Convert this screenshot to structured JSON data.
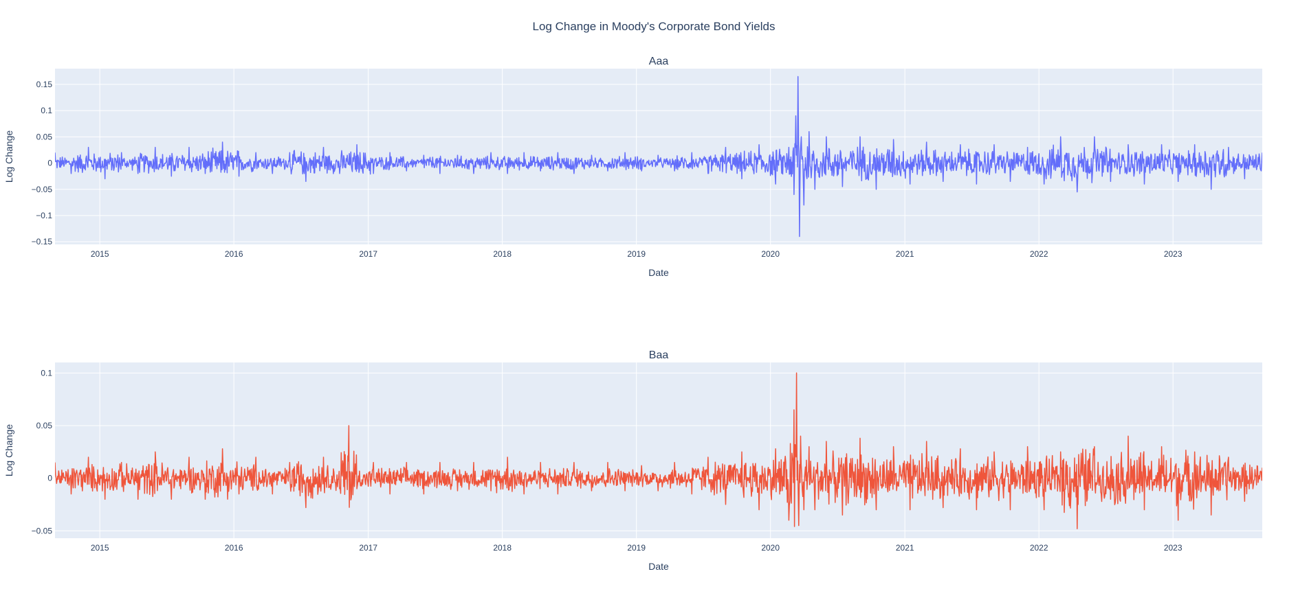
{
  "figure": {
    "title": "Log Change in Moody's Corporate Bond Yields"
  },
  "chart_data": [
    {
      "type": "line",
      "title": "Aaa",
      "xlabel": "Date",
      "ylabel": "Log Change",
      "x_range": [
        "2014-09-01",
        "2023-09-01"
      ],
      "ylim": [
        -0.155,
        0.18
      ],
      "x_ticks": [
        "2015",
        "2016",
        "2017",
        "2018",
        "2019",
        "2020",
        "2021",
        "2022",
        "2023"
      ],
      "y_ticks": [
        -0.15,
        -0.1,
        -0.05,
        0,
        0.05,
        0.1,
        0.15
      ],
      "y_tick_labels": [
        "−0.15",
        "−0.1",
        "−0.05",
        "0",
        "0.05",
        "0.1",
        "0.15"
      ],
      "grid": true,
      "series": [
        {
          "color": "#636efa",
          "x": [
            "2014-09-01",
            "2014-10-15",
            "2014-12-01",
            "2015-01-15",
            "2015-03-01",
            "2015-04-15",
            "2015-06-01",
            "2015-07-15",
            "2015-09-01",
            "2015-10-15",
            "2015-12-01",
            "2016-01-15",
            "2016-03-01",
            "2016-04-15",
            "2016-06-01",
            "2016-07-15",
            "2016-09-01",
            "2016-10-15",
            "2016-12-01",
            "2017-01-15",
            "2017-03-01",
            "2017-04-15",
            "2017-06-01",
            "2017-07-15",
            "2017-09-01",
            "2017-10-15",
            "2017-12-01",
            "2018-01-15",
            "2018-03-01",
            "2018-04-15",
            "2018-06-01",
            "2018-07-15",
            "2018-09-01",
            "2018-10-15",
            "2018-12-01",
            "2019-01-15",
            "2019-03-01",
            "2019-04-15",
            "2019-06-01",
            "2019-07-15",
            "2019-09-01",
            "2019-10-15",
            "2019-12-01",
            "2020-01-15",
            "2020-02-20",
            "2020-03-05",
            "2020-03-10",
            "2020-03-16",
            "2020-03-20",
            "2020-03-25",
            "2020-04-01",
            "2020-04-15",
            "2020-05-01",
            "2020-06-01",
            "2020-07-15",
            "2020-09-01",
            "2020-10-15",
            "2020-12-01",
            "2021-01-15",
            "2021-03-01",
            "2021-04-15",
            "2021-06-01",
            "2021-07-15",
            "2021-09-01",
            "2021-10-15",
            "2021-12-01",
            "2022-01-15",
            "2022-03-01",
            "2022-04-15",
            "2022-06-01",
            "2022-07-15",
            "2022-09-01",
            "2022-10-15",
            "2022-12-01",
            "2023-01-15",
            "2023-03-01",
            "2023-04-15",
            "2023-06-01",
            "2023-07-15",
            "2023-09-01"
          ],
          "y": [
            0.02,
            -0.02,
            0.03,
            -0.03,
            0.02,
            -0.02,
            0.03,
            -0.025,
            0.03,
            -0.02,
            0.04,
            -0.025,
            0.02,
            -0.02,
            0.02,
            -0.035,
            0.03,
            -0.02,
            0.035,
            -0.02,
            0.02,
            -0.015,
            0.015,
            -0.02,
            0.015,
            -0.02,
            0.02,
            -0.02,
            0.02,
            -0.015,
            0.02,
            -0.02,
            0.015,
            -0.015,
            0.02,
            -0.015,
            0.015,
            -0.015,
            0.02,
            -0.02,
            0.03,
            -0.03,
            0.035,
            -0.04,
            0.03,
            -0.06,
            0.09,
            0.165,
            -0.14,
            0.05,
            -0.08,
            0.06,
            -0.05,
            0.05,
            -0.045,
            0.05,
            -0.05,
            0.045,
            -0.04,
            0.04,
            -0.035,
            0.035,
            -0.04,
            0.035,
            -0.035,
            0.03,
            -0.04,
            0.05,
            -0.055,
            0.05,
            -0.035,
            0.035,
            -0.04,
            0.035,
            -0.035,
            0.035,
            -0.05,
            0.03,
            -0.03,
            0.02
          ]
        }
      ]
    },
    {
      "type": "line",
      "title": "Baa",
      "xlabel": "Date",
      "ylabel": "Log Change",
      "x_range": [
        "2014-09-01",
        "2023-09-01"
      ],
      "ylim": [
        -0.057,
        0.11
      ],
      "x_ticks": [
        "2015",
        "2016",
        "2017",
        "2018",
        "2019",
        "2020",
        "2021",
        "2022",
        "2023"
      ],
      "y_ticks": [
        -0.05,
        0,
        0.05,
        0.1
      ],
      "y_tick_labels": [
        "−0.05",
        "0",
        "0.05",
        "0.1"
      ],
      "grid": true,
      "series": [
        {
          "color": "#ef553b",
          "x": [
            "2014-09-01",
            "2014-10-15",
            "2014-12-01",
            "2015-01-15",
            "2015-03-01",
            "2015-04-15",
            "2015-06-01",
            "2015-07-15",
            "2015-09-01",
            "2015-10-15",
            "2015-12-01",
            "2016-01-15",
            "2016-03-01",
            "2016-04-15",
            "2016-06-01",
            "2016-07-15",
            "2016-09-01",
            "2016-10-15",
            "2016-11-09",
            "2016-12-01",
            "2017-01-15",
            "2017-03-01",
            "2017-04-15",
            "2017-06-01",
            "2017-07-15",
            "2017-09-01",
            "2017-10-15",
            "2017-12-01",
            "2018-01-15",
            "2018-03-01",
            "2018-04-15",
            "2018-06-01",
            "2018-07-15",
            "2018-09-01",
            "2018-10-15",
            "2018-12-01",
            "2019-01-15",
            "2019-03-01",
            "2019-04-15",
            "2019-06-01",
            "2019-07-15",
            "2019-09-01",
            "2019-10-15",
            "2019-12-01",
            "2020-01-15",
            "2020-02-20",
            "2020-03-05",
            "2020-03-12",
            "2020-03-18",
            "2020-03-23",
            "2020-04-01",
            "2020-04-15",
            "2020-05-01",
            "2020-06-01",
            "2020-07-15",
            "2020-09-01",
            "2020-10-15",
            "2020-12-01",
            "2021-01-15",
            "2021-03-01",
            "2021-04-15",
            "2021-06-01",
            "2021-07-15",
            "2021-09-01",
            "2021-10-15",
            "2021-12-01",
            "2022-01-15",
            "2022-03-01",
            "2022-04-15",
            "2022-06-01",
            "2022-07-15",
            "2022-09-01",
            "2022-10-15",
            "2022-12-01",
            "2023-01-15",
            "2023-03-01",
            "2023-04-15",
            "2023-06-01",
            "2023-07-15",
            "2023-09-01"
          ],
          "y": [
            0.015,
            -0.015,
            0.02,
            -0.02,
            0.015,
            -0.02,
            0.025,
            -0.02,
            0.02,
            -0.02,
            0.028,
            -0.015,
            0.02,
            -0.015,
            0.015,
            -0.028,
            0.02,
            -0.01,
            0.05,
            -0.01,
            0.015,
            -0.015,
            0.015,
            -0.015,
            0.015,
            -0.012,
            0.015,
            -0.012,
            0.02,
            -0.015,
            0.015,
            -0.015,
            0.015,
            -0.012,
            0.015,
            -0.012,
            0.012,
            -0.012,
            0.015,
            -0.015,
            0.02,
            -0.025,
            0.025,
            -0.03,
            0.028,
            -0.04,
            0.065,
            0.1,
            -0.045,
            0.04,
            -0.03,
            0.03,
            -0.03,
            0.035,
            -0.035,
            0.038,
            -0.03,
            0.03,
            -0.03,
            0.035,
            -0.028,
            0.028,
            -0.03,
            0.025,
            -0.03,
            0.03,
            -0.03,
            0.025,
            -0.048,
            0.03,
            -0.02,
            0.04,
            -0.03,
            0.03,
            -0.04,
            0.025,
            -0.035,
            0.02,
            -0.022,
            0.01
          ]
        }
      ]
    }
  ]
}
